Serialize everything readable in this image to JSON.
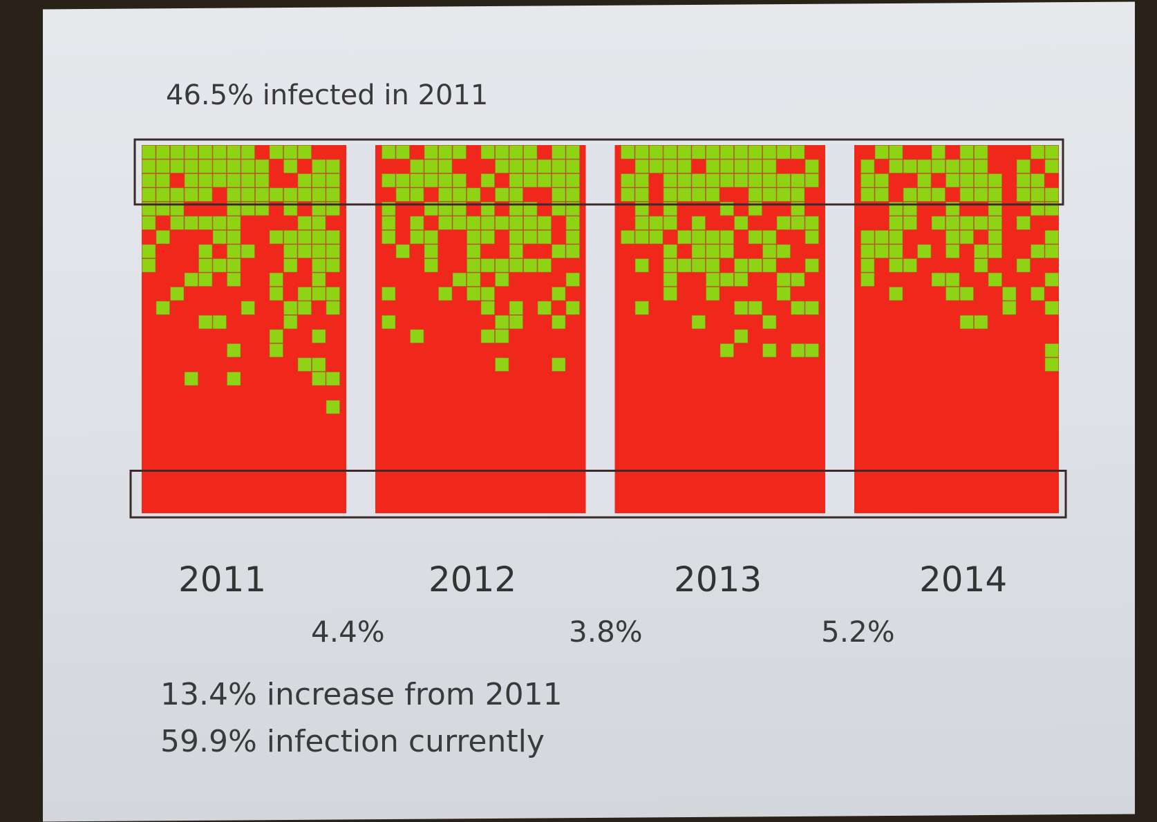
{
  "slide": {
    "title": "46.5% infected in 2011",
    "notes": [
      "13.4% increase from 2011",
      "59.9% infection currently"
    ]
  },
  "colors": {
    "infected": "#f0281c",
    "healthy": "#8fd414",
    "separator": "#dfe2e8",
    "grid_line": "#7a9a2a",
    "band": "#3a2a2a"
  },
  "chart_data": {
    "type": "heatmap",
    "title": "46.5% infected in 2011",
    "categories": [
      "2011",
      "2012",
      "2013",
      "2014"
    ],
    "changes": [
      "4.4%",
      "3.8%",
      "5.2%"
    ],
    "values_percent_infected": [
      46.5,
      null,
      null,
      59.9
    ],
    "legend": {
      "infected": "red",
      "not_infected": "green"
    },
    "grid_columns": 14,
    "grid_rows": 26
  }
}
